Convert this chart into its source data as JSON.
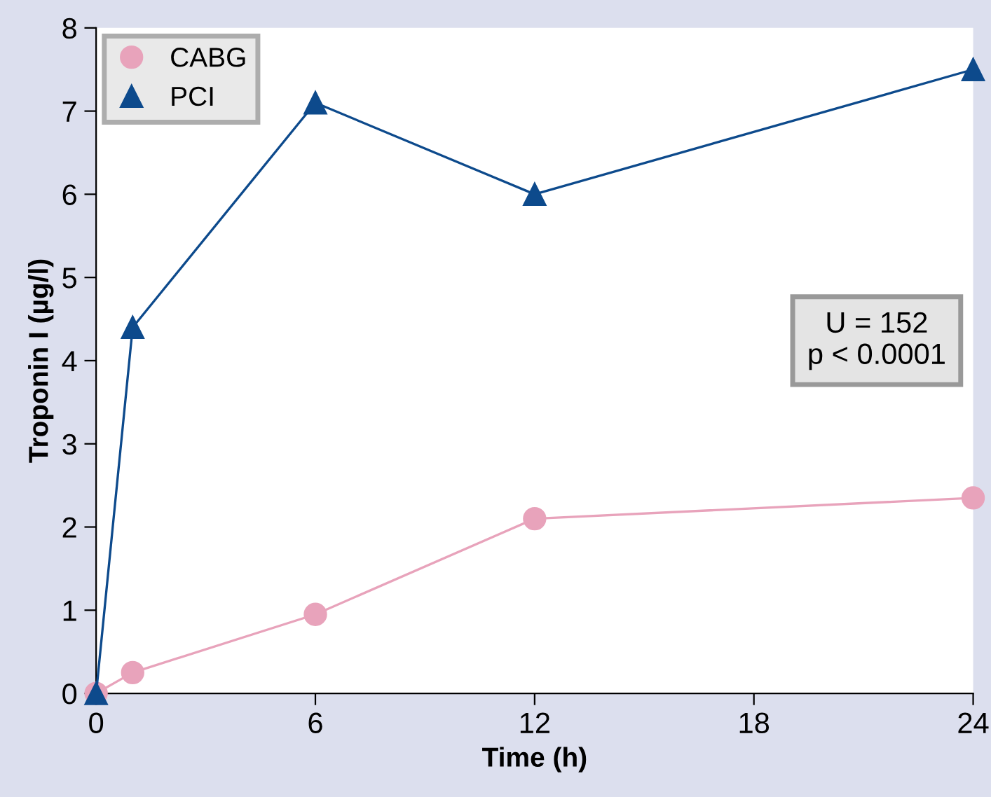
{
  "chart_data": {
    "type": "line",
    "xlabel": "Time (h)",
    "ylabel": "Troponin I (µg/l)",
    "x": [
      0,
      1,
      6,
      12,
      24
    ],
    "series": [
      {
        "name": "CABG",
        "color": "#e8a3bb",
        "marker": "circle",
        "values": [
          0,
          0.25,
          0.95,
          2.1,
          2.35
        ]
      },
      {
        "name": "PCI",
        "color": "#0d4a8c",
        "marker": "triangle",
        "values": [
          0,
          4.4,
          7.1,
          6.0,
          7.5
        ]
      }
    ],
    "xlim": [
      0,
      24
    ],
    "ylim": [
      0,
      8
    ],
    "xticks": [
      0,
      6,
      12,
      18,
      24
    ],
    "yticks": [
      0,
      1,
      2,
      3,
      4,
      5,
      6,
      7,
      8
    ],
    "grid": false,
    "legend": "top left",
    "line_style": "solid",
    "annotations": [
      "U = 152",
      "p < 0.0001"
    ]
  }
}
